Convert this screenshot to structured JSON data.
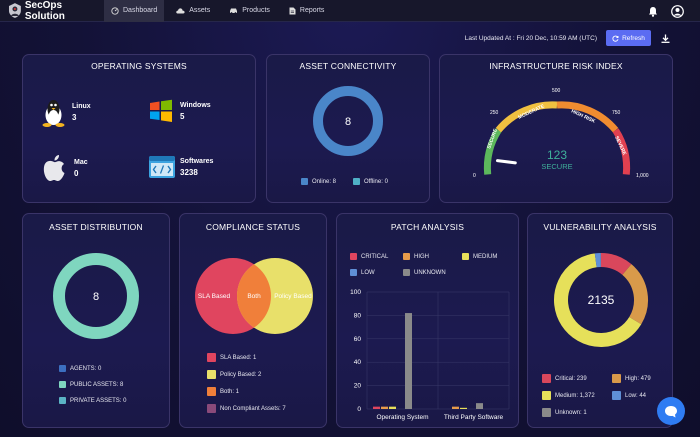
{
  "nav": {
    "brand": "SecOps Solution",
    "tabs": [
      {
        "label": "Dashboard"
      },
      {
        "label": "Assets"
      },
      {
        "label": "Products"
      },
      {
        "label": "Reports"
      }
    ]
  },
  "toolbar": {
    "last_updated": "Last Updated At : Fri 20 Dec, 10:59 AM (UTC)",
    "refresh_label": "Refresh"
  },
  "os": {
    "title": "OPERATING SYSTEMS",
    "items": [
      {
        "name": "Linux",
        "value": "3"
      },
      {
        "name": "Windows",
        "value": "5"
      },
      {
        "name": "Mac",
        "value": "0"
      },
      {
        "name": "Softwares",
        "value": "3238"
      }
    ]
  },
  "connectivity": {
    "title": "ASSET CONNECTIVITY",
    "total": "8",
    "online_label": "Online: 8",
    "offline_label": "Offline: 0",
    "online": 8,
    "offline": 0,
    "colors": {
      "online": "#4a86c9",
      "offline": "#4fb0c6"
    }
  },
  "risk": {
    "title": "INFRASTRUCTURE RISK INDEX",
    "value": "123",
    "status": "SECURE",
    "ticks": [
      "0",
      "250",
      "500",
      "750",
      "1,000"
    ],
    "bands": [
      "SECURE",
      "MODERATE",
      "HIGH RISK",
      "SEVERE"
    ],
    "score": 123,
    "max": 1000
  },
  "distribution": {
    "title": "ASSET DISTRIBUTION",
    "total": "8",
    "legend": [
      {
        "label": "AGENTS: 0",
        "color": "#3c6fc0"
      },
      {
        "label": "PUBLIC ASSETS: 8",
        "color": "#7fd6bf"
      },
      {
        "label": "PRIVATE ASSETS: 0",
        "color": "#5bb3c4"
      }
    ]
  },
  "compliance": {
    "title": "COMPLIANCE STATUS",
    "left_label": "SLA Based",
    "center_label": "Both",
    "right_label": "Policy Based",
    "legend": [
      {
        "label": "SLA Based: 1",
        "color": "#e0455f"
      },
      {
        "label": "Policy Based: 2",
        "color": "#e8e06a"
      },
      {
        "label": "Both: 1",
        "color": "#f07f3a"
      },
      {
        "label": "Non Compliant Assets: 7",
        "color": "#8a4a7a"
      }
    ]
  },
  "patch": {
    "title": "PATCH ANALYSIS",
    "legend": [
      {
        "label": "CRITICAL",
        "color": "#e0455f"
      },
      {
        "label": "HIGH",
        "color": "#e79b4a"
      },
      {
        "label": "MEDIUM",
        "color": "#e8df5a"
      },
      {
        "label": "LOW",
        "color": "#5f8fd6"
      },
      {
        "label": "UNKNOWN",
        "color": "#8a8a8a"
      }
    ]
  },
  "vuln": {
    "title": "VULNERABILITY ANALYSIS",
    "total": "2135",
    "legend": [
      {
        "label": "Critical: 239",
        "color": "#d9475c"
      },
      {
        "label": "High: 479",
        "color": "#d99a4a"
      },
      {
        "label": "Medium: 1,372",
        "color": "#e6e05a"
      },
      {
        "label": "Low: 44",
        "color": "#5f8fd6"
      },
      {
        "label": "Unknown: 1",
        "color": "#8a8a8a"
      }
    ],
    "values": [
      239,
      479,
      1372,
      44,
      1
    ]
  },
  "chart_data": {
    "type": "bar",
    "categories": [
      "Operating System",
      "Third Party Software"
    ],
    "series": [
      {
        "name": "CRITICAL",
        "values": [
          2,
          0
        ]
      },
      {
        "name": "HIGH",
        "values": [
          2,
          2
        ]
      },
      {
        "name": "MEDIUM",
        "values": [
          2,
          1
        ]
      },
      {
        "name": "LOW",
        "values": [
          0,
          0
        ]
      },
      {
        "name": "UNKNOWN",
        "values": [
          82,
          5
        ]
      }
    ],
    "ylim": [
      0,
      100
    ],
    "yticks": [
      0,
      20,
      40,
      60,
      80,
      100
    ],
    "colors": [
      "#e0455f",
      "#e79b4a",
      "#e8df5a",
      "#5f8fd6",
      "#8a8a8a"
    ]
  }
}
